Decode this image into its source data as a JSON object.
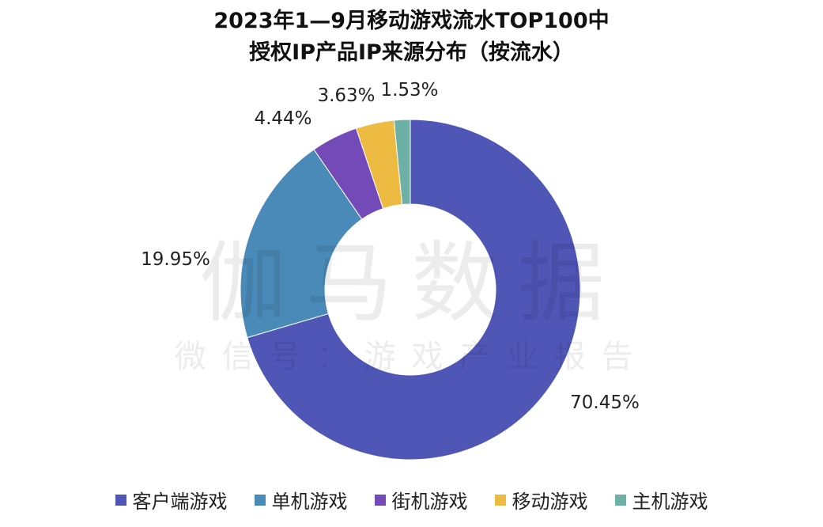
{
  "chart_data": {
    "type": "pie",
    "donut": true,
    "title": "2023年1—9月移动游戏流水TOP100中",
    "subtitle": "授权IP产品IP来源分布（按流水）",
    "start_angle": "12 o'clock, clockwise",
    "categories": [
      "客户端游戏",
      "单机游戏",
      "街机游戏",
      "移动游戏",
      "主机游戏"
    ],
    "values": [
      70.45,
      19.95,
      4.44,
      3.63,
      1.53
    ],
    "labels": [
      "70.45%",
      "19.95%",
      "4.44%",
      "3.63%",
      "1.53%"
    ],
    "colors": [
      "#4F56B6",
      "#4A8AB8",
      "#7449B8",
      "#EDBB42",
      "#6DB0A6"
    ],
    "legend_position": "bottom"
  },
  "watermark": {
    "line1": "伽马数据",
    "line2": "微信号：游戏产业报告"
  }
}
